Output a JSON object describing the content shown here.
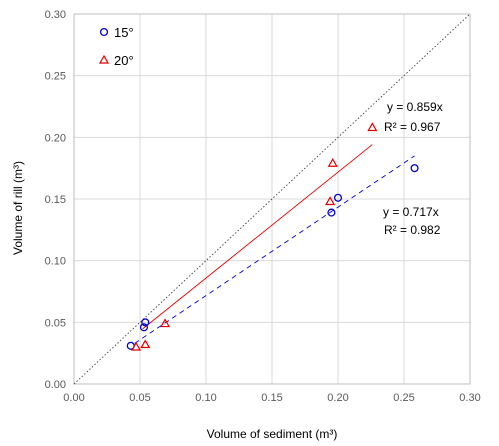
{
  "chart_data": {
    "type": "scatter",
    "xlabel": "Volume of sediment (m³)",
    "ylabel": "Volume of rill (m³)",
    "xlim": [
      0,
      0.3
    ],
    "ylim": [
      0,
      0.3
    ],
    "xticks": [
      "0.00",
      "0.05",
      "0.10",
      "0.15",
      "0.20",
      "0.25",
      "0.30"
    ],
    "yticks": [
      "0.00",
      "0.05",
      "0.10",
      "0.15",
      "0.20",
      "0.25",
      "0.30"
    ],
    "grid": true,
    "legend_position": "top-left",
    "reference_line": {
      "style": "dotted",
      "color": "#404040",
      "slope": 1
    },
    "series": [
      {
        "name": "15°",
        "marker": "circle",
        "color": "#0000CC",
        "x": [
          0.043,
          0.053,
          0.054,
          0.195,
          0.2,
          0.258
        ],
        "y": [
          0.031,
          0.046,
          0.05,
          0.139,
          0.151,
          0.175
        ],
        "trendline": {
          "slope": 0.717,
          "style": "dashed",
          "x_range": [
            0.046,
            0.258
          ]
        },
        "equation": "y = 0.717x",
        "r2": "R² = 0.982"
      },
      {
        "name": "20°",
        "marker": "triangle",
        "color": "#E00000",
        "x": [
          0.047,
          0.054,
          0.069,
          0.194,
          0.196,
          0.226
        ],
        "y": [
          0.03,
          0.032,
          0.049,
          0.148,
          0.179,
          0.208
        ],
        "trendline": {
          "slope": 0.859,
          "style": "solid",
          "x_range": [
            0.052,
            0.226
          ]
        },
        "equation": "y = 0.859x",
        "r2": "R² = 0.967"
      }
    ]
  }
}
